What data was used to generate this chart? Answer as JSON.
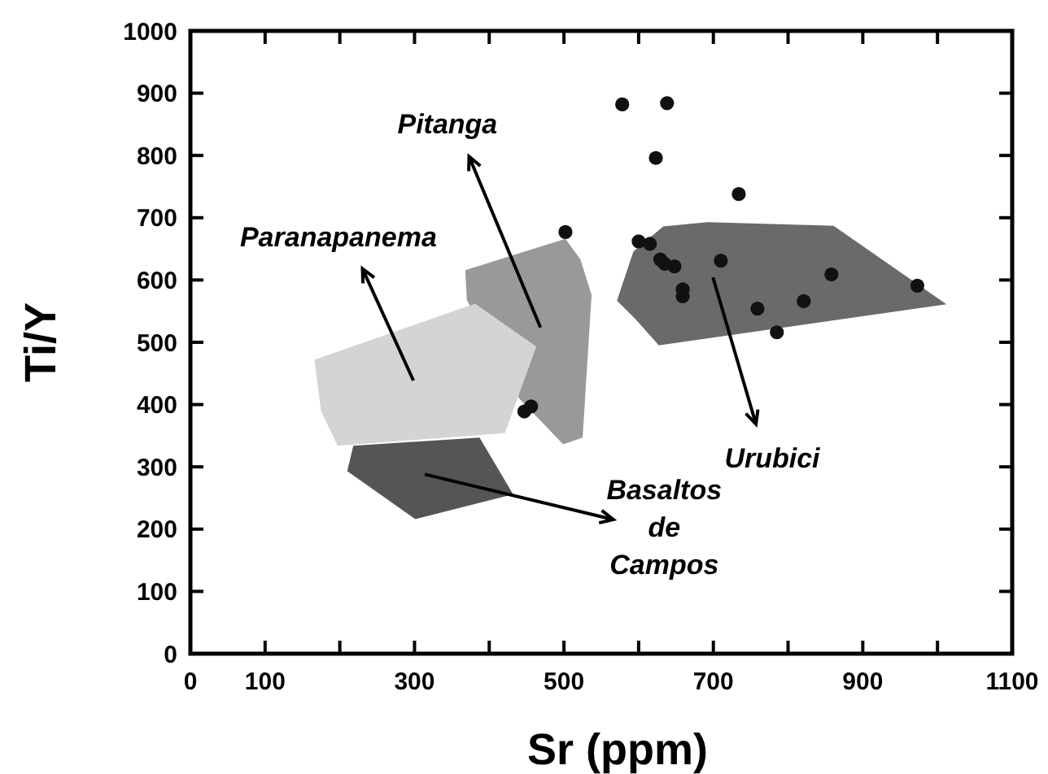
{
  "chart_data": {
    "type": "scatter",
    "xlabel": "Sr  (ppm)",
    "ylabel": "Ti/Y",
    "xlim": [
      0,
      1100
    ],
    "ylim": [
      0,
      1000
    ],
    "xticks": [
      0,
      100,
      {
        "value": 200,
        "label": null
      },
      300,
      {
        "value": 400,
        "label": null
      },
      500,
      {
        "value": 600,
        "label": null
      },
      700,
      {
        "value": 800,
        "label": null
      },
      900,
      {
        "value": 1000,
        "label": null
      },
      1100
    ],
    "yticks": [
      0,
      100,
      200,
      300,
      400,
      500,
      600,
      700,
      800,
      900,
      1000
    ],
    "grid": false,
    "series": [
      {
        "type": "area",
        "name": "Pitanga",
        "color": "#999999",
        "x": [
          368,
          502,
          522,
          537,
          525,
          499,
          440,
          370
        ],
        "values": [
          616,
          666,
          633,
          576,
          347,
          336,
          410,
          568
        ]
      },
      {
        "type": "area",
        "name": "Paranapanema",
        "color": "#d4d4d4",
        "x": [
          166,
          381,
          463,
          421,
          197,
          175
        ],
        "values": [
          472,
          562,
          493,
          354,
          334,
          389
        ]
      },
      {
        "type": "area",
        "name": "Basaltos de Campos",
        "color": "#555555",
        "x": [
          218,
          387,
          432,
          301,
          210
        ],
        "values": [
          334,
          347,
          256,
          216,
          293
        ]
      },
      {
        "type": "area",
        "name": "Urubici",
        "color": "#6a6a6a",
        "x": [
          571,
          593,
          633,
          692,
          861,
          1012,
          627,
          596
        ],
        "values": [
          567,
          646,
          686,
          693,
          687,
          561,
          495,
          537
        ]
      },
      {
        "marker": "circle",
        "color": "#111111",
        "x": [
          578,
          638,
          623,
          734,
          600,
          615,
          629,
          635,
          648,
          659,
          659,
          710,
          759,
          785,
          821,
          858,
          973,
          502,
          447,
          456
        ],
        "values": [
          882,
          884,
          796,
          738,
          662,
          658,
          633,
          626,
          622,
          585,
          574,
          631,
          554,
          516,
          566,
          609,
          591,
          677,
          389,
          397
        ]
      }
    ]
  }
}
